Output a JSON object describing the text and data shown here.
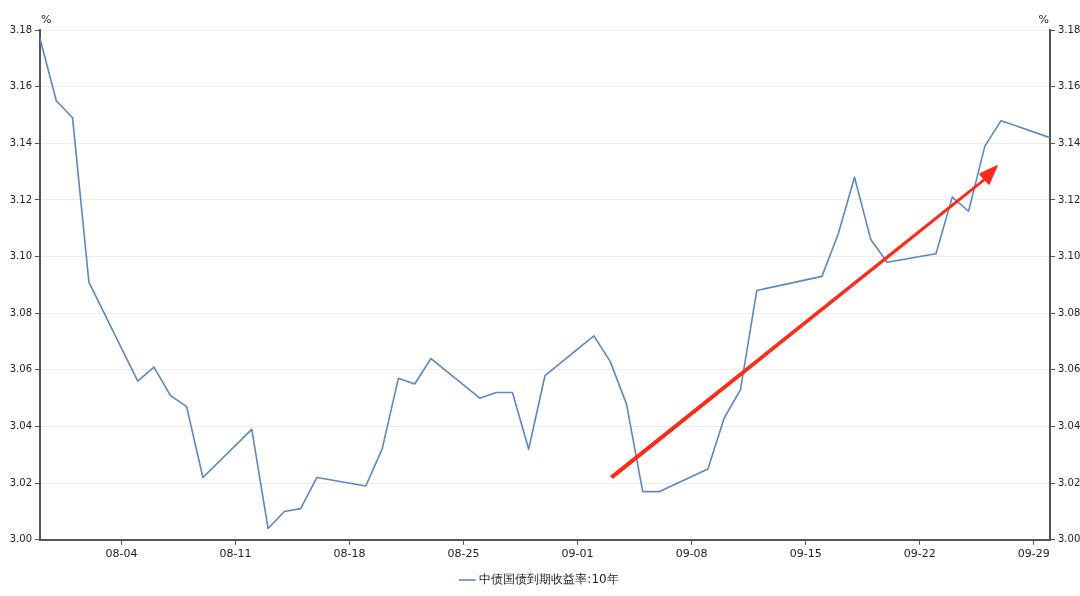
{
  "chart_data": {
    "type": "line",
    "ylabel": "%",
    "y2label": "%",
    "x": [
      "--07-30",
      "--07-31",
      "--08-01",
      "--08-02",
      "--08-05",
      "--08-06",
      "--08-07",
      "--08-08",
      "--08-09",
      "--08-12",
      "--08-13",
      "--08-14",
      "--08-15",
      "--08-16",
      "--08-19",
      "--08-20",
      "--08-21",
      "--08-22",
      "--08-23",
      "--08-26",
      "--08-27",
      "--08-28",
      "--08-29",
      "--08-30",
      "--09-02",
      "--09-03",
      "--09-04",
      "--09-05",
      "--09-06",
      "--09-09",
      "--09-10",
      "--09-11",
      "--09-12",
      "--09-16",
      "--09-17",
      "--09-18",
      "--09-19",
      "--09-20",
      "--09-23",
      "--09-24",
      "--09-25",
      "--09-26",
      "--09-27",
      "--09-30"
    ],
    "series": [
      {
        "name": "中债国债到期收益率:10年",
        "color": "#5b87c5",
        "values": [
          3.177,
          3.155,
          3.149,
          3.091,
          3.056,
          3.061,
          3.051,
          3.047,
          3.022,
          3.039,
          3.004,
          3.01,
          3.011,
          3.022,
          3.019,
          3.032,
          3.057,
          3.055,
          3.064,
          3.05,
          3.052,
          3.052,
          3.032,
          3.058,
          3.072,
          3.063,
          3.048,
          3.017,
          3.017,
          3.025,
          3.043,
          3.053,
          3.088,
          3.093,
          3.108,
          3.128,
          3.106,
          3.098,
          3.101,
          3.121,
          3.116,
          3.139,
          3.148,
          3.142
        ]
      }
    ],
    "xlim": [
      "--07-30",
      "--09-30"
    ],
    "xticks": [
      {
        "value": "--08-04",
        "label": "08-04"
      },
      {
        "value": "--08-11",
        "label": "08-11"
      },
      {
        "value": "--08-18",
        "label": "08-18"
      },
      {
        "value": "--08-25",
        "label": "08-25"
      },
      {
        "value": "--09-01",
        "label": "09-01"
      },
      {
        "value": "--09-08",
        "label": "09-08"
      },
      {
        "value": "--09-15",
        "label": "09-15"
      },
      {
        "value": "--09-22",
        "label": "09-22"
      },
      {
        "value": "--09-29",
        "label": "09-29"
      }
    ],
    "ylim": [
      3.0,
      3.18
    ],
    "yticks": [
      {
        "value": 3.0,
        "label": "3.00"
      },
      3.02,
      3.04,
      3.06,
      3.08,
      {
        "value": 3.1,
        "label": "3.10"
      },
      3.12,
      3.14,
      3.16,
      3.18
    ],
    "y2lim": [
      3.0,
      3.18
    ],
    "y2ticks": [
      {
        "value": 3.0,
        "label": "3.00"
      },
      3.02,
      3.04,
      3.06,
      3.08,
      {
        "value": 3.1,
        "label": "3.10"
      },
      3.12,
      3.14,
      3.16,
      3.18
    ],
    "grid": "y",
    "legend": "bottom",
    "marker": "none",
    "line_style": "solid"
  }
}
